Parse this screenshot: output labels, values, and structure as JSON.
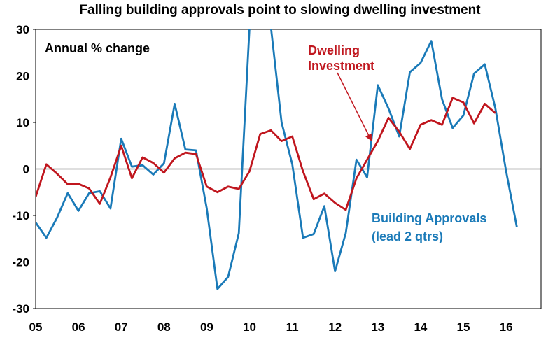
{
  "chart_data": {
    "type": "line",
    "title": "Falling building approvals point to slowing dwelling investment",
    "subtitle": "Annual % change",
    "ylim": [
      -30,
      30
    ],
    "yticks": [
      "30",
      "20",
      "10",
      "0",
      "-10",
      "-20",
      "-30"
    ],
    "x_tick_labels": [
      "05",
      "06",
      "07",
      "08",
      "09",
      "10",
      "11",
      "12",
      "13",
      "14",
      "15",
      "16"
    ],
    "x_start_year": 2005.0,
    "grid": false,
    "series": [
      {
        "name": "Building Approvals (lead 2 qtrs)",
        "label_lines": [
          "Building Approvals",
          "(lead 2 qtrs)"
        ],
        "color": "#1a7ab8",
        "x": [
          2005.0,
          2005.25,
          2005.5,
          2005.75,
          2006.0,
          2006.25,
          2006.5,
          2006.75,
          2007.0,
          2007.25,
          2007.5,
          2007.75,
          2008.0,
          2008.25,
          2008.5,
          2008.75,
          2009.0,
          2009.25,
          2009.5,
          2009.75,
          2010.0,
          2010.25,
          2010.5,
          2010.75,
          2011.0,
          2011.25,
          2011.5,
          2011.75,
          2012.0,
          2012.25,
          2012.5,
          2012.75,
          2013.0,
          2013.25,
          2013.5,
          2013.75,
          2014.0,
          2014.25,
          2014.5,
          2014.75,
          2015.0,
          2015.25,
          2015.5,
          2015.75,
          2016.0,
          2016.25,
          2016.5
        ],
        "y": [
          -11.5,
          -14.8,
          -10.5,
          -5.2,
          -9.0,
          -5.2,
          -4.8,
          -8.5,
          6.5,
          0.5,
          0.8,
          -1.2,
          1.2,
          14.0,
          4.2,
          4.0,
          -8.5,
          -25.8,
          -23.2,
          -13.8,
          30.5,
          30.5,
          30.5,
          10.0,
          1.0,
          -14.8,
          -14.0,
          -8.0,
          -22.0,
          -13.8,
          2.0,
          -1.8,
          18.0,
          13.0,
          7.0,
          20.8,
          22.8,
          27.5,
          15.0,
          8.8,
          11.5,
          20.5,
          22.5,
          13.0,
          -0.5,
          -12.5,
          null
        ],
        "note": "series clipped at top of plot area near 2010"
      },
      {
        "name": "Dwelling Investment",
        "label_lines": [
          "Dwelling",
          "Investment"
        ],
        "color": "#c0161e",
        "x": [
          2005.0,
          2005.25,
          2005.5,
          2005.75,
          2006.0,
          2006.25,
          2006.5,
          2006.75,
          2007.0,
          2007.25,
          2007.5,
          2007.75,
          2008.0,
          2008.25,
          2008.5,
          2008.75,
          2009.0,
          2009.25,
          2009.5,
          2009.75,
          2010.0,
          2010.25,
          2010.5,
          2010.75,
          2011.0,
          2011.25,
          2011.5,
          2011.75,
          2012.0,
          2012.25,
          2012.5,
          2012.75,
          2013.0,
          2013.25,
          2013.5,
          2013.75,
          2014.0,
          2014.25,
          2014.5,
          2014.75,
          2015.0,
          2015.25,
          2015.5,
          2015.75
        ],
        "y": [
          -6.0,
          1.0,
          -1.0,
          -3.3,
          -3.2,
          -4.2,
          -7.5,
          -1.8,
          5.0,
          -2.0,
          2.5,
          1.3,
          -0.8,
          2.3,
          3.5,
          3.2,
          -3.8,
          -5.0,
          -3.8,
          -4.3,
          -0.5,
          7.5,
          8.3,
          6.0,
          7.0,
          -0.5,
          -6.5,
          -5.3,
          -7.3,
          -8.8,
          -2.0,
          2.0,
          6.0,
          11.0,
          8.0,
          4.3,
          9.5,
          10.5,
          9.5,
          15.3,
          14.3,
          9.8,
          14.0,
          12.0
        ]
      }
    ]
  }
}
